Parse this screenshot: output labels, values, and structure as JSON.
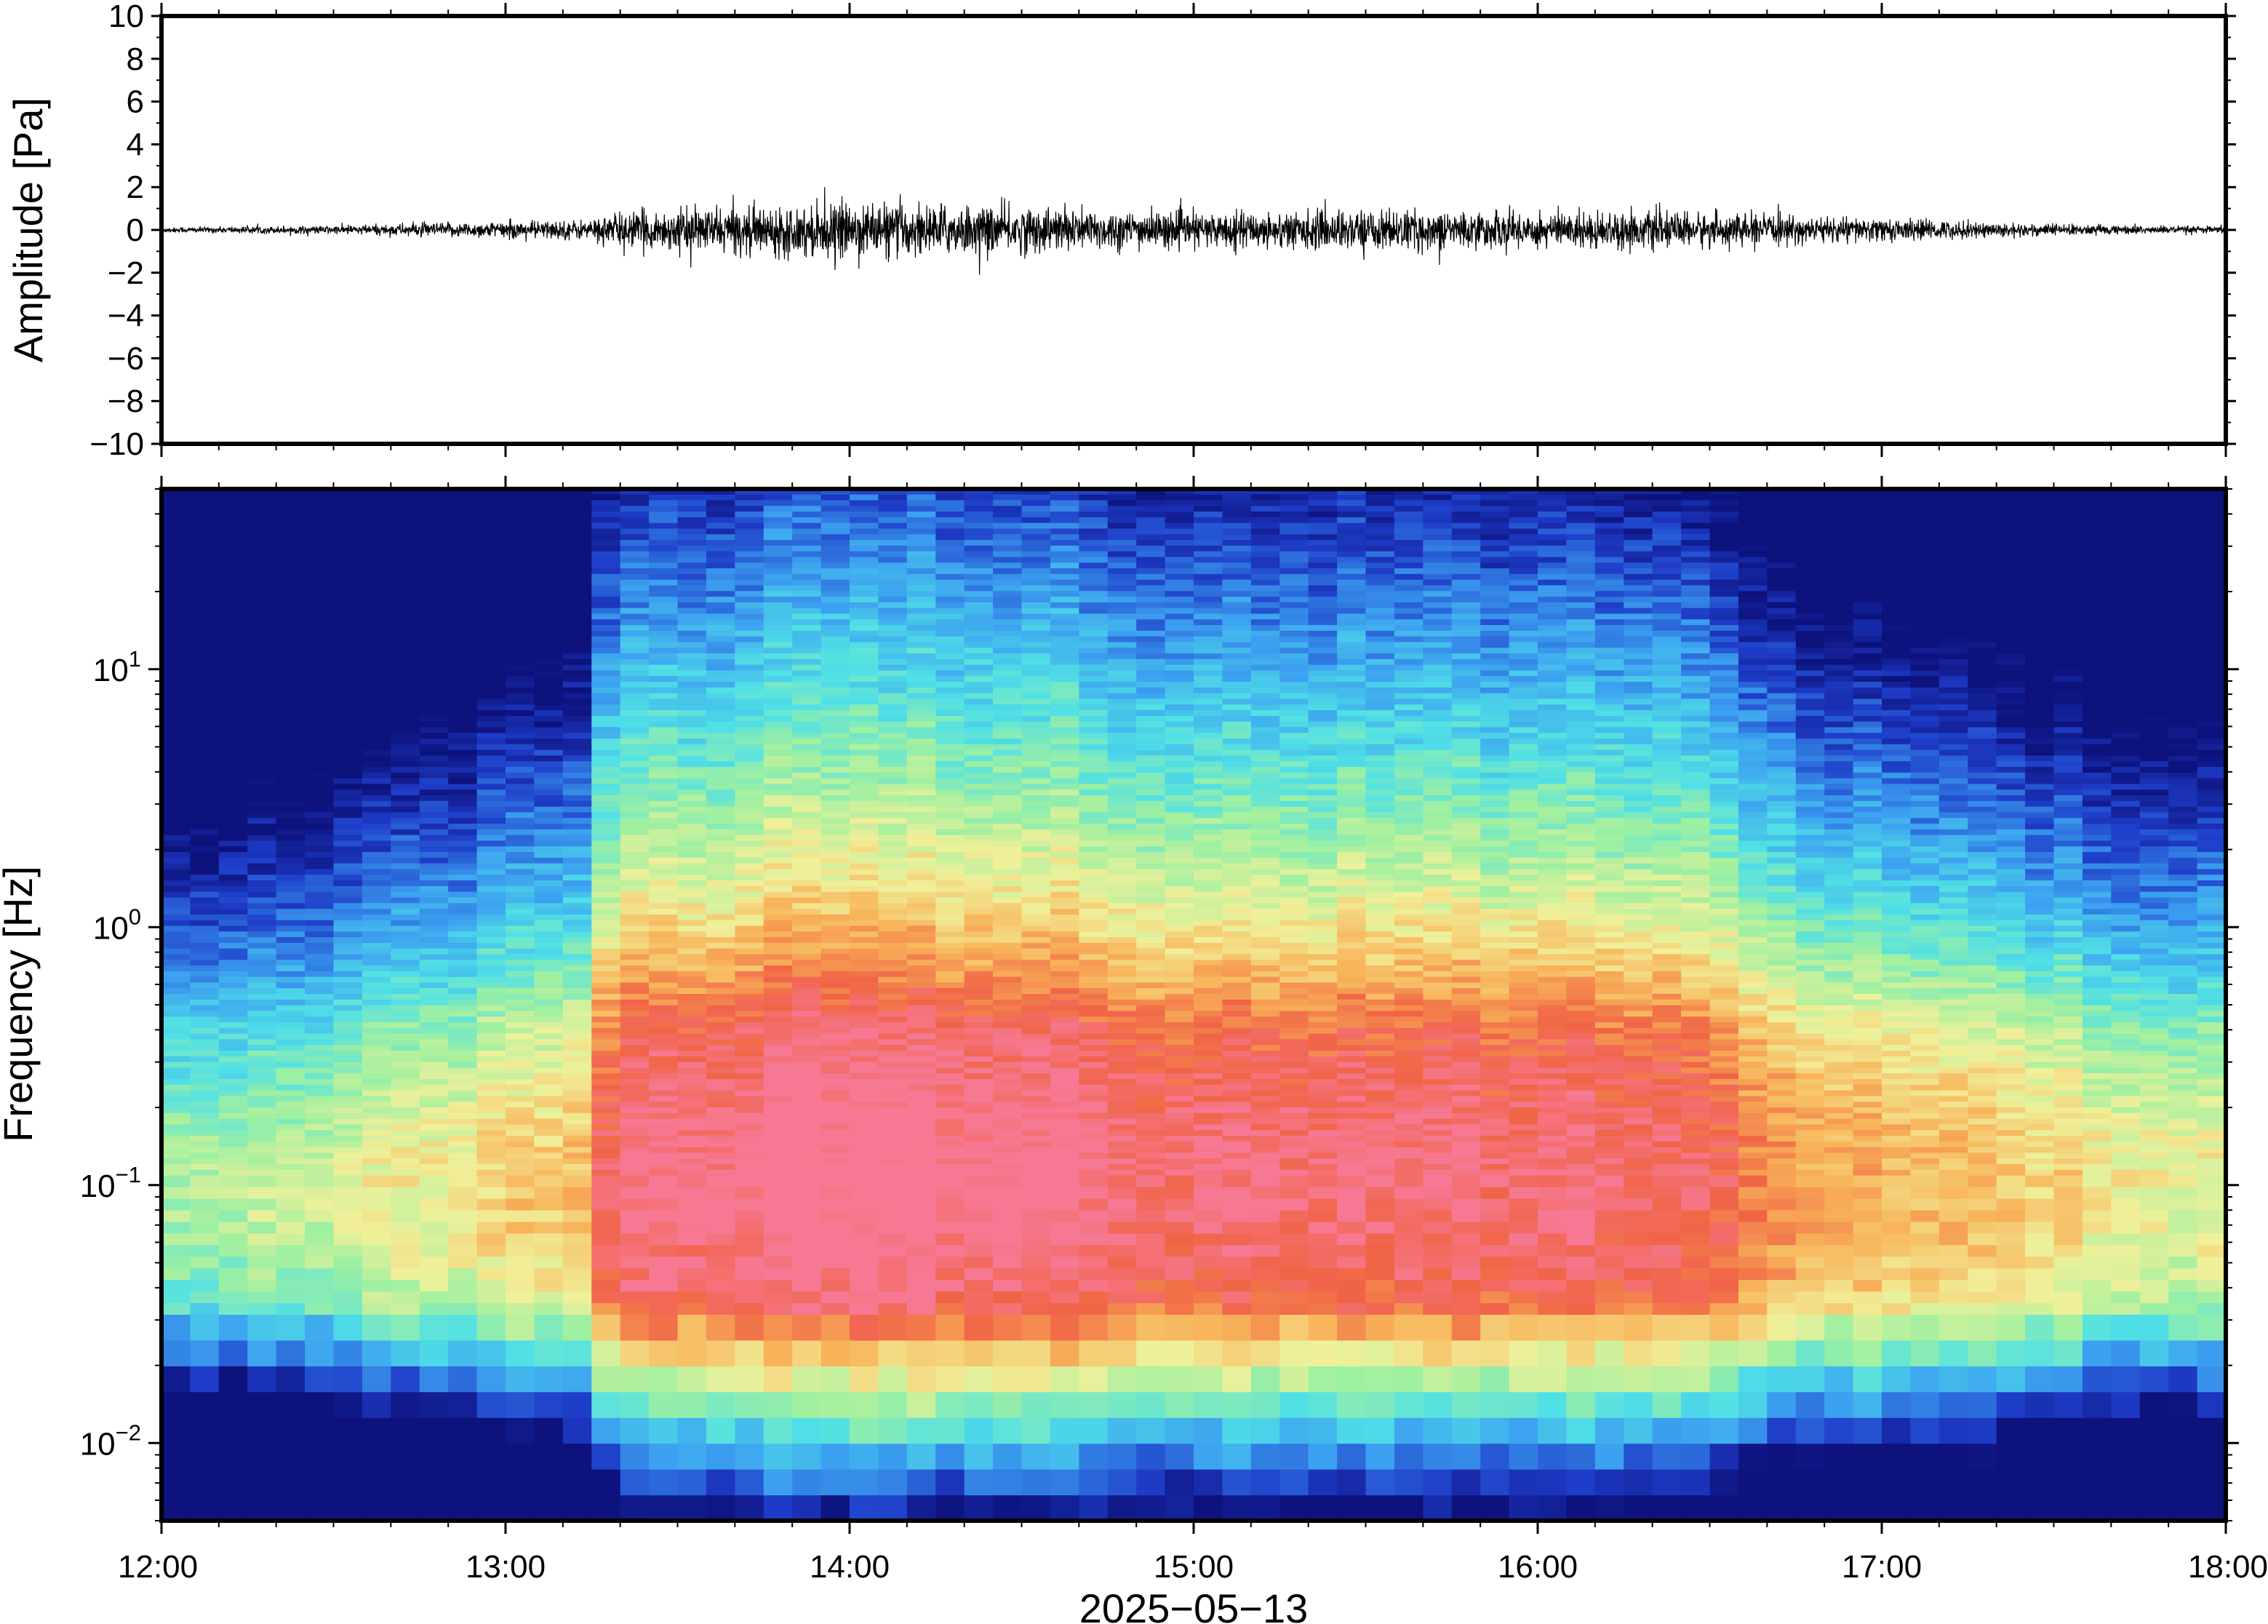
{
  "chart_data": [
    {
      "type": "line",
      "panel": "waveform",
      "ylabel": "Amplitude [Pa]",
      "ylim": [
        -10,
        10
      ],
      "yticks": [
        10,
        8,
        6,
        4,
        2,
        0,
        -2,
        -4,
        -6,
        -8,
        -10
      ],
      "ytick_labels": [
        "10",
        "8",
        "6",
        "4",
        "2",
        "0",
        "−2",
        "−4",
        "−6",
        "−8",
        "−10"
      ],
      "x_range": [
        "2025-05-13 12:00",
        "2025-05-13 18:00"
      ],
      "trace_color": "#000000",
      "envelope": {
        "x_hours": [
          12.0,
          12.5,
          12.75,
          13.0,
          13.25,
          13.3,
          13.5,
          13.75,
          14.0,
          14.25,
          14.5,
          14.75,
          15.0,
          15.25,
          15.5,
          15.75,
          16.0,
          16.25,
          16.5,
          16.75,
          17.0,
          17.25,
          17.5,
          17.75,
          18.0
        ],
        "amplitude_pa": [
          0.15,
          0.25,
          0.4,
          0.5,
          0.6,
          1.0,
          1.2,
          1.4,
          1.6,
          1.5,
          1.4,
          1.2,
          1.0,
          1.1,
          1.2,
          1.1,
          1.1,
          1.1,
          1.0,
          0.8,
          0.7,
          0.5,
          0.35,
          0.25,
          0.2
        ]
      }
    },
    {
      "type": "heatmap",
      "panel": "spectrogram",
      "ylabel": "Frequency [Hz]",
      "xlabel": "2025−05−13",
      "yscale": "log",
      "ylim": [
        0.005,
        50
      ],
      "yticks": [
        0.01,
        0.1,
        1,
        10
      ],
      "ytick_labels": [
        {
          "base": "10",
          "exp": "−2"
        },
        {
          "base": "10",
          "exp": "−1"
        },
        {
          "base": "10",
          "exp": "0"
        },
        {
          "base": "10",
          "exp": "1"
        }
      ],
      "x_ticks": [
        "12:00",
        "13:00",
        "14:00",
        "15:00",
        "16:00",
        "17:00",
        "18:00"
      ],
      "colormap": [
        "#0a0a6e",
        "#1e3cc8",
        "#3ca0f0",
        "#50e0e6",
        "#a0f0a0",
        "#f0f09a",
        "#f8b45a",
        "#f06446",
        "#f87ca0"
      ],
      "column_minutes": 5,
      "approx_activity_by_time": {
        "x_hours": [
          12.0,
          12.5,
          13.0,
          13.25,
          13.3,
          14.0,
          14.5,
          15.0,
          15.5,
          16.0,
          16.5,
          16.75,
          17.0,
          17.5,
          18.0
        ],
        "level": [
          0.1,
          0.25,
          0.4,
          0.45,
          0.85,
          1.0,
          0.95,
          0.85,
          0.85,
          0.85,
          0.8,
          0.6,
          0.55,
          0.4,
          0.3
        ]
      }
    }
  ]
}
